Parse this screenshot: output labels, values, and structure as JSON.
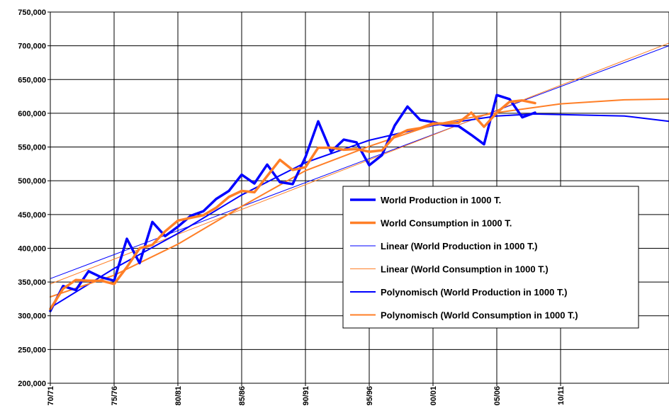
{
  "chart_data": {
    "type": "line",
    "title": "",
    "xlabel": "",
    "ylabel": "",
    "ylim": [
      200000,
      750000
    ],
    "y_ticks": [
      "200,000",
      "250,000",
      "300,000",
      "350,000",
      "400,000",
      "450,000",
      "500,000",
      "550,000",
      "600,000",
      "650,000",
      "700,000",
      "750,000"
    ],
    "x_tick_labels": [
      "70/71",
      "75/76",
      "80/81",
      "85/86",
      "90/91",
      "95/96",
      "00/01",
      "05/06",
      "10/11"
    ],
    "x_range": [
      1970,
      2018.5
    ],
    "grid": true,
    "legend_position": "right",
    "series": [
      {
        "name": "World Production in 1000 T.",
        "color": "#0000ff",
        "style": "thick",
        "x": [
          1970,
          1971,
          1972,
          1973,
          1974,
          1975,
          1976,
          1977,
          1978,
          1979,
          1980,
          1981,
          1982,
          1983,
          1984,
          1985,
          1986,
          1987,
          1988,
          1989,
          1990,
          1991,
          1992,
          1993,
          1994,
          1995,
          1996,
          1997,
          1998,
          1999,
          2000,
          2001,
          2002,
          2003,
          2004,
          2005,
          2006,
          2007,
          2008
        ],
        "values": [
          307000,
          344000,
          338000,
          366000,
          357000,
          352000,
          414000,
          378000,
          439000,
          418000,
          432000,
          448000,
          455000,
          473000,
          485000,
          509000,
          496000,
          524000,
          498000,
          495000,
          535000,
          588000,
          543000,
          561000,
          557000,
          523000,
          538000,
          582000,
          610000,
          590000,
          587000,
          582000,
          581000,
          568000,
          554000,
          627000,
          621000,
          594000,
          601000
        ]
      },
      {
        "name": "World Consumption in 1000 T.",
        "color": "#ff7f27",
        "style": "thick",
        "x": [
          1970,
          1971,
          1972,
          1973,
          1974,
          1975,
          1976,
          1977,
          1978,
          1979,
          1980,
          1981,
          1982,
          1983,
          1984,
          1985,
          1986,
          1987,
          1988,
          1989,
          1990,
          1991,
          1992,
          1993,
          1994,
          1995,
          1996,
          1997,
          1998,
          1999,
          2000,
          2001,
          2002,
          2003,
          2004,
          2005,
          2006,
          2007,
          2008
        ],
        "values": [
          310000,
          340000,
          353000,
          352000,
          352000,
          347000,
          372000,
          400000,
          405000,
          425000,
          441000,
          445000,
          449000,
          460000,
          476000,
          485000,
          483000,
          507000,
          531000,
          516000,
          520000,
          549000,
          549000,
          546000,
          547000,
          543000,
          545000,
          566000,
          575000,
          578000,
          585000,
          585000,
          586000,
          601000,
          580000,
          601000,
          617000,
          619000,
          615000
        ]
      },
      {
        "name": "Linear (World Production in 1000 T.)",
        "color": "#0000ff",
        "style": "thin",
        "x": [
          1970,
          2018.5
        ],
        "values": [
          355000,
          700000
        ]
      },
      {
        "name": "Linear (World Consumption in 1000 T.)",
        "color": "#ff7f27",
        "style": "thin",
        "x": [
          1970,
          2018.5
        ],
        "values": [
          347000,
          704000
        ]
      },
      {
        "name": "Polynomisch (World Production in 1000 T.)",
        "color": "#0000ff",
        "style": "medium",
        "x": [
          1970,
          1975,
          1980,
          1985,
          1990,
          1995,
          2000,
          2005,
          2008,
          2010,
          2015,
          2018.5
        ],
        "values": [
          312000,
          370000,
          422000,
          479000,
          527000,
          560000,
          582000,
          596000,
          599000,
          598000,
          596000,
          588000
        ]
      },
      {
        "name": "Polynomisch (World Consumption in 1000 T.)",
        "color": "#ff7f27",
        "style": "medium",
        "x": [
          1970,
          1975,
          1980,
          1985,
          1990,
          1995,
          2000,
          2005,
          2010,
          2015,
          2018.5
        ],
        "values": [
          328000,
          360000,
          406000,
          462000,
          515000,
          551000,
          583000,
          601000,
          614000,
          620000,
          621000
        ]
      }
    ]
  }
}
